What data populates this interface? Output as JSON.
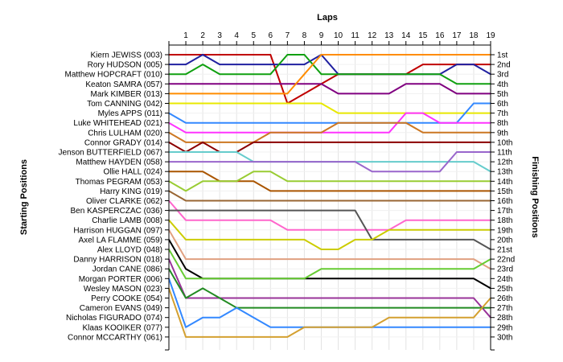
{
  "chart_data": {
    "type": "line",
    "title": "",
    "x_axis_title": "Laps",
    "y_left_title": "Starting Positions",
    "y_right_title": "Finishing Positions",
    "x": [
      1,
      2,
      3,
      4,
      5,
      6,
      7,
      8,
      9,
      10,
      11,
      12,
      13,
      14,
      15,
      16,
      17,
      18,
      19
    ],
    "drivers": [
      "Kiern JEWISS (003)",
      "Rory HUDSON (005)",
      "Matthew HOPCRAFT (010)",
      "Keaton SAMRA (057)",
      "Mark KIMBER (013)",
      "Tom CANNING (042)",
      "Myles APPS (011)",
      "Luke WHITEHEAD (021)",
      "Chris LULHAM (020)",
      "Connor GRADY (014)",
      "Jenson BUTTERFIELD (067)",
      "Matthew HAYDEN (058)",
      "Ollie HALL (024)",
      "Thomas PEGRAM (053)",
      "Harry KING (019)",
      "Oliver CLARKE (062)",
      "Ben KASPERCZAC (036)",
      "Charlie LAMB (008)",
      "Harrison HUGGAN (097)",
      "Axel LA FLAMME (059)",
      "Alex LLOYD (048)",
      "Danny HARRISON (018)",
      "Jordan CANE (086)",
      "Morgan PORTER (006)",
      "Wesley MASON (023)",
      "Perry COOKE (054)",
      "Cameron EVANS (049)",
      "Nicholas FIGURADO (074)",
      "Klaas KOOIKER (077)",
      "Connor MCCARTHY (061)"
    ],
    "finish_labels": [
      "1st",
      "2nd",
      "3rd",
      "4th",
      "5th",
      "6th",
      "7th",
      "8th",
      "9th",
      "10th",
      "11th",
      "12th",
      "13th",
      "14th",
      "15th",
      "16th",
      "17th",
      "18th",
      "19th",
      "20th",
      "21st",
      "22nd",
      "23rd",
      "24th",
      "25th",
      "26th",
      "27th",
      "28th",
      "29th",
      "30th"
    ],
    "series": [
      {
        "color": "#c00000",
        "positions": [
          1,
          1,
          1,
          1,
          1,
          1,
          6,
          5,
          4,
          3,
          3,
          3,
          3,
          3,
          2,
          2,
          2,
          2,
          2
        ]
      },
      {
        "color": "#2020a0",
        "positions": [
          2,
          1,
          2,
          2,
          2,
          2,
          2,
          2,
          1,
          3,
          3,
          3,
          3,
          3,
          3,
          3,
          2,
          2,
          3
        ]
      },
      {
        "color": "#10a010",
        "positions": [
          3,
          2,
          3,
          3,
          3,
          3,
          1,
          1,
          3,
          3,
          3,
          3,
          3,
          3,
          3,
          3,
          4,
          4,
          4
        ]
      },
      {
        "color": "#800080",
        "positions": [
          4,
          4,
          4,
          4,
          4,
          4,
          4,
          4,
          4,
          5,
          5,
          5,
          5,
          4,
          4,
          4,
          5,
          5,
          5
        ]
      },
      {
        "color": "#ff8c00",
        "positions": [
          5,
          5,
          5,
          5,
          5,
          5,
          5,
          3,
          1,
          1,
          1,
          1,
          1,
          1,
          1,
          1,
          1,
          1,
          1
        ]
      },
      {
        "color": "#e8e800",
        "positions": [
          6,
          6,
          6,
          6,
          6,
          6,
          6,
          6,
          6,
          7,
          7,
          7,
          7,
          7,
          7,
          7,
          7,
          7,
          7
        ]
      },
      {
        "color": "#3388ff",
        "positions": [
          8,
          8,
          8,
          8,
          8,
          8,
          8,
          8,
          8,
          8,
          8,
          8,
          8,
          8,
          8,
          8,
          8,
          6,
          6
        ]
      },
      {
        "color": "#ff33ff",
        "positions": [
          9,
          9,
          9,
          9,
          9,
          9,
          9,
          9,
          9,
          9,
          9,
          9,
          9,
          7,
          7,
          8,
          8,
          8,
          8
        ]
      },
      {
        "color": "#cc7722",
        "positions": [
          10,
          10,
          10,
          10,
          10,
          9,
          9,
          9,
          9,
          8,
          8,
          8,
          8,
          8,
          9,
          9,
          9,
          9,
          9
        ]
      },
      {
        "color": "#8b0000",
        "positions": [
          11,
          10,
          11,
          11,
          10,
          10,
          10,
          10,
          10,
          10,
          10,
          10,
          10,
          10,
          10,
          10,
          10,
          10,
          10
        ]
      },
      {
        "color": "#66cccc",
        "positions": [
          11,
          11,
          11,
          11,
          12,
          12,
          12,
          12,
          12,
          12,
          12,
          12,
          12,
          12,
          12,
          12,
          12,
          12,
          13
        ]
      },
      {
        "color": "#9966cc",
        "positions": [
          12,
          12,
          12,
          12,
          12,
          12,
          12,
          12,
          12,
          12,
          12,
          13,
          13,
          13,
          13,
          13,
          11,
          11,
          11
        ]
      },
      {
        "color": "#aa5500",
        "positions": [
          13,
          13,
          14,
          14,
          14,
          15,
          15,
          15,
          15,
          15,
          15,
          15,
          15,
          15,
          15,
          15,
          15,
          15,
          15
        ]
      },
      {
        "color": "#99cc33",
        "positions": [
          15,
          14,
          14,
          14,
          13,
          13,
          14,
          14,
          14,
          14,
          14,
          14,
          14,
          14,
          14,
          14,
          14,
          14,
          14
        ]
      },
      {
        "color": "#996633",
        "positions": [
          16,
          16,
          16,
          16,
          16,
          16,
          16,
          16,
          16,
          16,
          16,
          16,
          16,
          16,
          16,
          16,
          16,
          16,
          16
        ]
      },
      {
        "color": "#ff66cc",
        "positions": [
          18,
          18,
          18,
          18,
          18,
          18,
          19,
          19,
          19,
          19,
          19,
          19,
          19,
          18,
          18,
          18,
          18,
          18,
          18
        ]
      },
      {
        "color": "#555555",
        "positions": [
          17,
          17,
          17,
          17,
          17,
          17,
          17,
          17,
          17,
          17,
          17,
          20,
          20,
          20,
          20,
          20,
          20,
          20,
          21
        ]
      },
      {
        "color": "#cccc00",
        "positions": [
          20,
          20,
          20,
          20,
          20,
          20,
          20,
          20,
          21,
          21,
          20,
          20,
          19,
          19,
          19,
          19,
          19,
          19,
          19
        ]
      },
      {
        "color": "#e0a080",
        "positions": [
          22,
          22,
          22,
          22,
          22,
          22,
          22,
          22,
          22,
          22,
          22,
          22,
          22,
          22,
          22,
          22,
          22,
          22,
          23
        ]
      },
      {
        "color": "#000000",
        "positions": [
          23,
          24,
          24,
          24,
          24,
          24,
          24,
          24,
          24,
          24,
          24,
          24,
          24,
          24,
          24,
          24,
          24,
          24,
          25
        ]
      },
      {
        "color": "#66cc33",
        "positions": [
          24,
          24,
          24,
          24,
          24,
          24,
          24,
          24,
          23,
          23,
          23,
          23,
          23,
          23,
          23,
          23,
          23,
          23,
          22
        ]
      },
      {
        "color": "#993399",
        "positions": [
          26,
          26,
          26,
          26,
          26,
          26,
          26,
          26,
          26,
          26,
          26,
          26,
          26,
          26,
          26,
          26,
          26,
          26,
          28
        ]
      },
      {
        "color": "#228b22",
        "positions": [
          26,
          25,
          26,
          27,
          27,
          27,
          27,
          27,
          27,
          27,
          27,
          27,
          27,
          27,
          27,
          27,
          27,
          27,
          27
        ]
      },
      {
        "color": "#3388ff",
        "positions": [
          29,
          28,
          28,
          27,
          28,
          29,
          29,
          29,
          29,
          29,
          29,
          29,
          29,
          29,
          29,
          29,
          29,
          29,
          29
        ]
      },
      {
        "color": "#d4a030",
        "positions": [
          30,
          30,
          30,
          30,
          30,
          30,
          30,
          29,
          29,
          29,
          29,
          29,
          28,
          28,
          28,
          28,
          28,
          28,
          26
        ]
      }
    ]
  }
}
